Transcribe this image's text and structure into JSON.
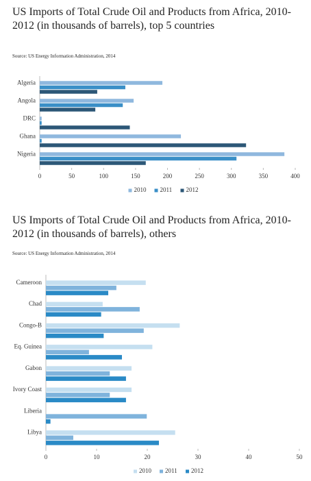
{
  "chart_data": [
    {
      "type": "bar",
      "orientation": "horizontal",
      "title": "US Imports of Total Crude Oil and Products from Africa, 2010-2012 (in thousands of barrels), top 5 countries",
      "source": "Source: US Energy Information Administration, 2014",
      "categories": [
        "Algeria",
        "Angola",
        "DRC",
        "Ghana",
        "Nigeria"
      ],
      "series": [
        {
          "name": "2010",
          "color": "#8fb8de",
          "values": [
            192,
            147,
            3,
            221,
            383
          ]
        },
        {
          "name": "2011",
          "color": "#3a8fc7",
          "values": [
            134,
            130,
            3,
            3,
            308
          ]
        },
        {
          "name": "2012",
          "color": "#2c5777",
          "values": [
            90,
            87,
            141,
            323,
            166
          ]
        }
      ],
      "xlim": [
        0,
        400
      ],
      "xticks": [
        0,
        50,
        100,
        150,
        200,
        250,
        300,
        350,
        400
      ],
      "legend": "bottom"
    },
    {
      "type": "bar",
      "orientation": "horizontal",
      "title": "US Imports of Total Crude Oil and Products from Africa, 2010-2012 (in thousands of barrels), others",
      "source": "Source: US Energy Information Administration, 2014",
      "categories": [
        "Cameroon",
        "Chad",
        "Congo-B",
        "Eq. Guinea",
        "Gabon",
        "Ivory Coast",
        "Liberia",
        "Libya"
      ],
      "series": [
        {
          "name": "2010",
          "color": "#c5dff0",
          "values": [
            19.7,
            11.2,
            26.4,
            21,
            16.9,
            16.9,
            0,
            25.5
          ]
        },
        {
          "name": "2011",
          "color": "#7fb3dc",
          "values": [
            13.9,
            18.5,
            19.3,
            8.5,
            12.6,
            12.6,
            19.9,
            5.4
          ]
        },
        {
          "name": "2012",
          "color": "#2a8ac6",
          "values": [
            12.3,
            10.9,
            11.4,
            15,
            15.8,
            15.8,
            0.9,
            22.3
          ]
        }
      ],
      "xlim": [
        0,
        50
      ],
      "xticks": [
        0,
        10,
        20,
        30,
        40,
        50
      ],
      "legend": "bottom"
    }
  ]
}
